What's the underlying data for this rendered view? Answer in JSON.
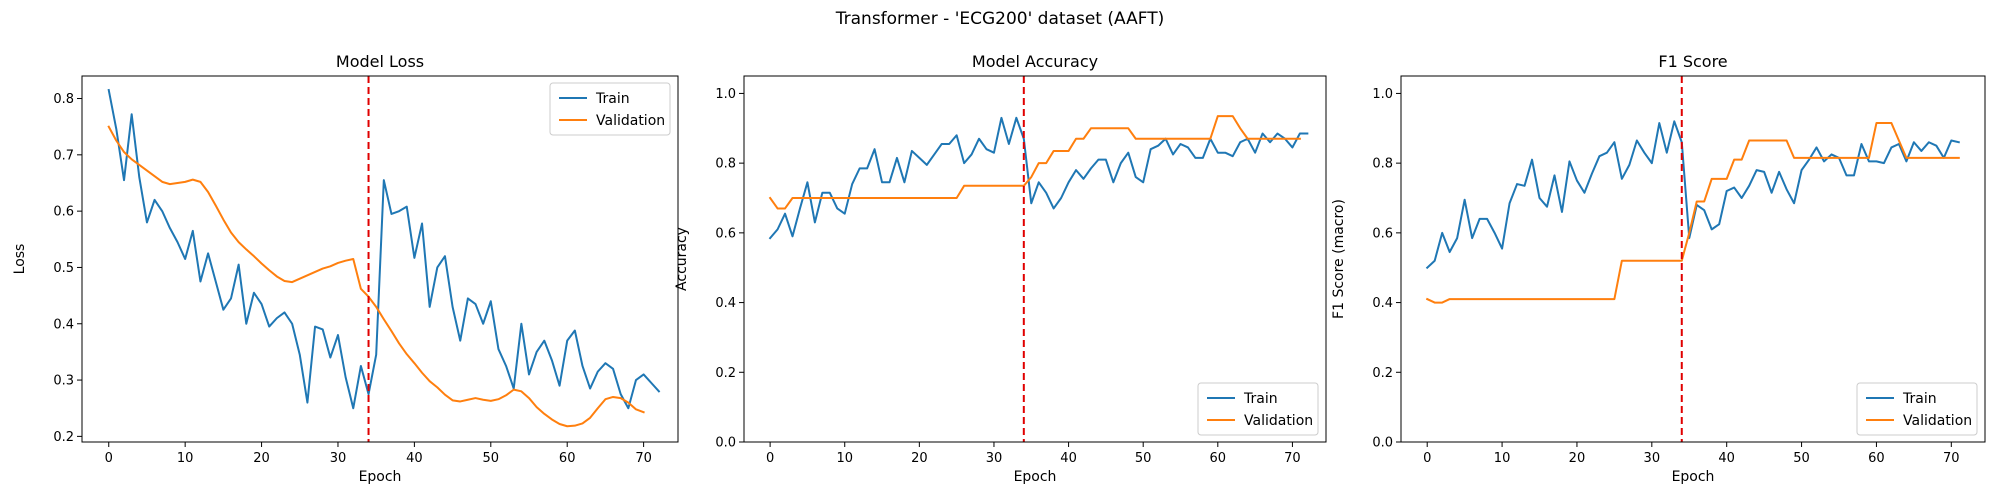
{
  "figure": {
    "suptitle": "Transformer - 'ECG200' dataset (AAFT)",
    "colors": {
      "train": "#1f77b4",
      "validation": "#ff7f0e",
      "marker": "#e00000"
    }
  },
  "chart_data": [
    {
      "type": "line",
      "title": "Model Loss",
      "xlabel": "Epoch",
      "ylabel": "Loss",
      "xlim": [
        -3.5,
        74.5
      ],
      "ylim": [
        0.19,
        0.84
      ],
      "xticks": [
        0,
        10,
        20,
        30,
        40,
        50,
        60,
        70
      ],
      "yticks": [
        0.2,
        0.3,
        0.4,
        0.5,
        0.6,
        0.7,
        0.8
      ],
      "ytick_labels": [
        "0.2",
        "0.3",
        "0.4",
        "0.5",
        "0.6",
        "0.7",
        "0.8"
      ],
      "vline": 34,
      "legend": "upper right",
      "series": [
        {
          "name": "Train",
          "color": "#1f77b4",
          "values": [
            0.815,
            0.745,
            0.655,
            0.772,
            0.66,
            0.58,
            0.62,
            0.6,
            0.57,
            0.545,
            0.515,
            0.565,
            0.475,
            0.525,
            0.475,
            0.425,
            0.445,
            0.505,
            0.4,
            0.455,
            0.435,
            0.395,
            0.41,
            0.42,
            0.4,
            0.345,
            0.26,
            0.395,
            0.39,
            0.34,
            0.38,
            0.305,
            0.25,
            0.325,
            0.275,
            0.345,
            0.655,
            0.595,
            0.6,
            0.608,
            0.517,
            0.578,
            0.43,
            0.5,
            0.52,
            0.43,
            0.37,
            0.445,
            0.435,
            0.4,
            0.44,
            0.355,
            0.325,
            0.285,
            0.4,
            0.31,
            0.35,
            0.37,
            0.335,
            0.29,
            0.37,
            0.388,
            0.325,
            0.285,
            0.315,
            0.33,
            0.32,
            0.275,
            0.25,
            0.3,
            0.31,
            0.295,
            0.28
          ]
        },
        {
          "name": "Validation",
          "color": "#ff7f0e",
          "values": [
            0.75,
            0.725,
            0.705,
            0.692,
            0.682,
            0.672,
            0.662,
            0.652,
            0.648,
            0.65,
            0.652,
            0.656,
            0.652,
            0.634,
            0.61,
            0.585,
            0.562,
            0.545,
            0.532,
            0.52,
            0.507,
            0.495,
            0.484,
            0.476,
            0.474,
            0.48,
            0.486,
            0.492,
            0.498,
            0.502,
            0.508,
            0.512,
            0.515,
            0.462,
            0.448,
            0.43,
            0.408,
            0.387,
            0.365,
            0.346,
            0.33,
            0.313,
            0.298,
            0.287,
            0.274,
            0.264,
            0.262,
            0.265,
            0.268,
            0.265,
            0.263,
            0.266,
            0.273,
            0.283,
            0.28,
            0.268,
            0.252,
            0.24,
            0.23,
            0.222,
            0.218,
            0.219,
            0.223,
            0.233,
            0.25,
            0.266,
            0.27,
            0.268,
            0.26,
            0.248,
            0.243
          ]
        }
      ]
    },
    {
      "type": "line",
      "title": "Model Accuracy",
      "xlabel": "Epoch",
      "ylabel": "Accuracy",
      "xlim": [
        -3.5,
        74.5
      ],
      "ylim": [
        0.0,
        1.05
      ],
      "xticks": [
        0,
        10,
        20,
        30,
        40,
        50,
        60,
        70
      ],
      "yticks": [
        0.0,
        0.2,
        0.4,
        0.6,
        0.8,
        1.0
      ],
      "ytick_labels": [
        "0.0",
        "0.2",
        "0.4",
        "0.6",
        "0.8",
        "1.0"
      ],
      "vline": 34,
      "legend": "lower right",
      "series": [
        {
          "name": "Train",
          "color": "#1f77b4",
          "values": [
            0.585,
            0.61,
            0.655,
            0.59,
            0.67,
            0.745,
            0.63,
            0.715,
            0.715,
            0.67,
            0.655,
            0.74,
            0.785,
            0.785,
            0.84,
            0.745,
            0.745,
            0.815,
            0.745,
            0.835,
            0.815,
            0.795,
            0.825,
            0.855,
            0.855,
            0.88,
            0.8,
            0.825,
            0.87,
            0.84,
            0.83,
            0.93,
            0.855,
            0.93,
            0.87,
            0.685,
            0.745,
            0.715,
            0.67,
            0.7,
            0.745,
            0.78,
            0.755,
            0.785,
            0.81,
            0.81,
            0.745,
            0.8,
            0.83,
            0.76,
            0.745,
            0.84,
            0.85,
            0.87,
            0.825,
            0.855,
            0.845,
            0.815,
            0.815,
            0.87,
            0.83,
            0.83,
            0.82,
            0.86,
            0.87,
            0.83,
            0.885,
            0.86,
            0.885,
            0.87,
            0.845,
            0.885,
            0.885
          ]
        },
        {
          "name": "Validation",
          "color": "#ff7f0e",
          "values": [
            0.7,
            0.67,
            0.67,
            0.7,
            0.7,
            0.7,
            0.7,
            0.7,
            0.7,
            0.7,
            0.7,
            0.7,
            0.7,
            0.7,
            0.7,
            0.7,
            0.7,
            0.7,
            0.7,
            0.7,
            0.7,
            0.7,
            0.7,
            0.7,
            0.7,
            0.7,
            0.735,
            0.735,
            0.735,
            0.735,
            0.735,
            0.735,
            0.735,
            0.735,
            0.735,
            0.76,
            0.8,
            0.8,
            0.835,
            0.835,
            0.835,
            0.87,
            0.87,
            0.9,
            0.9,
            0.9,
            0.9,
            0.9,
            0.9,
            0.87,
            0.87,
            0.87,
            0.87,
            0.87,
            0.87,
            0.87,
            0.87,
            0.87,
            0.87,
            0.87,
            0.935,
            0.935,
            0.935,
            0.9,
            0.87,
            0.87,
            0.87,
            0.87,
            0.87,
            0.87,
            0.87,
            0.87
          ]
        }
      ]
    },
    {
      "type": "line",
      "title": "F1 Score",
      "xlabel": "Epoch",
      "ylabel": "F1 Score (macro)",
      "xlim": [
        -3.5,
        74.5
      ],
      "ylim": [
        0.0,
        1.05
      ],
      "xticks": [
        0,
        10,
        20,
        30,
        40,
        50,
        60,
        70
      ],
      "yticks": [
        0.0,
        0.2,
        0.4,
        0.6,
        0.8,
        1.0
      ],
      "ytick_labels": [
        "0.0",
        "0.2",
        "0.4",
        "0.6",
        "0.8",
        "1.0"
      ],
      "vline": 34,
      "legend": "lower right",
      "series": [
        {
          "name": "Train",
          "color": "#1f77b4",
          "values": [
            0.5,
            0.52,
            0.6,
            0.545,
            0.585,
            0.695,
            0.585,
            0.64,
            0.64,
            0.6,
            0.555,
            0.685,
            0.74,
            0.735,
            0.81,
            0.7,
            0.675,
            0.765,
            0.66,
            0.805,
            0.75,
            0.715,
            0.77,
            0.82,
            0.83,
            0.86,
            0.755,
            0.795,
            0.865,
            0.83,
            0.8,
            0.915,
            0.83,
            0.92,
            0.86,
            0.585,
            0.68,
            0.665,
            0.61,
            0.625,
            0.72,
            0.73,
            0.7,
            0.735,
            0.78,
            0.775,
            0.715,
            0.775,
            0.725,
            0.685,
            0.78,
            0.81,
            0.845,
            0.805,
            0.825,
            0.815,
            0.765,
            0.765,
            0.855,
            0.805,
            0.805,
            0.8,
            0.845,
            0.855,
            0.805,
            0.86,
            0.835,
            0.86,
            0.85,
            0.815,
            0.865,
            0.86
          ]
        },
        {
          "name": "Validation",
          "color": "#ff7f0e",
          "values": [
            0.41,
            0.4,
            0.4,
            0.41,
            0.41,
            0.41,
            0.41,
            0.41,
            0.41,
            0.41,
            0.41,
            0.41,
            0.41,
            0.41,
            0.41,
            0.41,
            0.41,
            0.41,
            0.41,
            0.41,
            0.41,
            0.41,
            0.41,
            0.41,
            0.41,
            0.41,
            0.52,
            0.52,
            0.52,
            0.52,
            0.52,
            0.52,
            0.52,
            0.52,
            0.52,
            0.6,
            0.69,
            0.69,
            0.755,
            0.755,
            0.755,
            0.81,
            0.81,
            0.865,
            0.865,
            0.865,
            0.865,
            0.865,
            0.865,
            0.815,
            0.815,
            0.815,
            0.815,
            0.815,
            0.815,
            0.815,
            0.815,
            0.815,
            0.815,
            0.815,
            0.915,
            0.915,
            0.915,
            0.865,
            0.815,
            0.815,
            0.815,
            0.815,
            0.815,
            0.815,
            0.815,
            0.815
          ]
        }
      ]
    }
  ]
}
